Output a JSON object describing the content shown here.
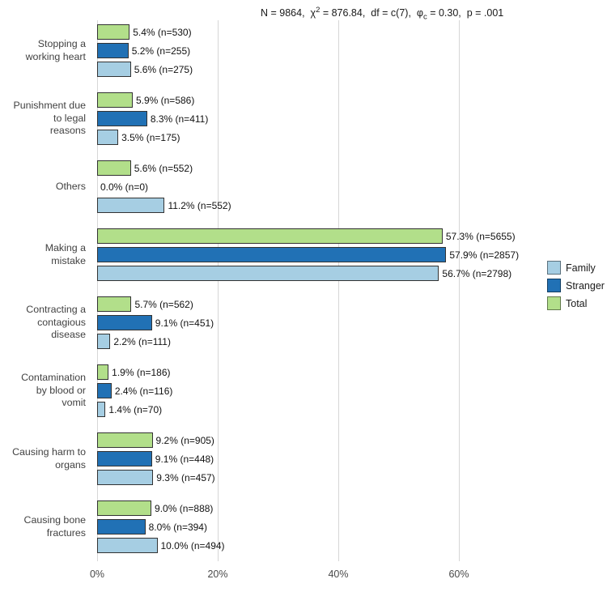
{
  "chart_data": {
    "type": "bar",
    "orientation": "horizontal",
    "title": "N = 9864, χ² = 876.84, df = c(7), φc = 0.30, p = .001",
    "stats": {
      "part1": "N = 9864,  ",
      "chi_symbol": "χ",
      "chi_exponent": "2",
      "part2": " = 876.84,  df = c(7),  ",
      "phi_symbol": "φ",
      "phi_subscript": "c",
      "part3": " = 0.30,  p = .001"
    },
    "categories": [
      "Stopping a\nworking heart",
      "Punishment due\nto legal\nreasons",
      "Others",
      "Making a\nmistake",
      "Contracting a\ncontagious\ndisease",
      "Contamination\nby blood or\nvomit",
      "Causing harm to\norgans",
      "Causing bone\nfractures"
    ],
    "group_order_top_to_bottom": [
      "Total",
      "Stranger",
      "Family"
    ],
    "series": [
      {
        "name": "Total",
        "color": "#b2df8a",
        "values": [
          5.4,
          5.9,
          5.6,
          57.3,
          5.7,
          1.9,
          9.2,
          9.0
        ],
        "counts": [
          530,
          586,
          552,
          5655,
          562,
          186,
          905,
          888
        ],
        "labels": [
          "5.4% (n=530)",
          "5.9% (n=586)",
          "5.6% (n=552)",
          "57.3% (n=5655)",
          "5.7% (n=562)",
          "1.9% (n=186)",
          "9.2% (n=905)",
          "9.0% (n=888)"
        ]
      },
      {
        "name": "Stranger",
        "color": "#2171b5",
        "values": [
          5.2,
          8.3,
          0.0,
          57.9,
          9.1,
          2.4,
          9.1,
          8.0
        ],
        "counts": [
          255,
          411,
          0,
          2857,
          451,
          116,
          448,
          394
        ],
        "labels": [
          "5.2% (n=255)",
          "8.3% (n=411)",
          "0.0% (n=0)",
          "57.9% (n=2857)",
          "9.1% (n=451)",
          "2.4% (n=116)",
          "9.1% (n=448)",
          "8.0% (n=394)"
        ]
      },
      {
        "name": "Family",
        "color": "#a6cee3",
        "values": [
          5.6,
          3.5,
          11.2,
          56.7,
          2.2,
          1.4,
          9.3,
          10.0
        ],
        "counts": [
          275,
          175,
          552,
          2798,
          111,
          70,
          457,
          494
        ],
        "labels": [
          "5.6% (n=275)",
          "3.5% (n=175)",
          "11.2% (n=552)",
          "56.7% (n=2798)",
          "2.2% (n=111)",
          "1.4% (n=70)",
          "9.3% (n=457)",
          "10.0% (n=494)"
        ]
      }
    ],
    "x_axis": {
      "tick_labels": [
        "0%",
        "20%",
        "40%",
        "60%"
      ],
      "tick_values": [
        0,
        20,
        40,
        60
      ],
      "range": [
        0,
        84
      ]
    },
    "legend": {
      "position": "right",
      "entries": [
        {
          "label": "Family",
          "color": "#a6cee3"
        },
        {
          "label": "Stranger",
          "color": "#2171b5"
        },
        {
          "label": "Total",
          "color": "#b2df8a"
        }
      ]
    },
    "grid": "vertical-only",
    "background": "#ffffff",
    "bar_border_color": "#333333"
  }
}
